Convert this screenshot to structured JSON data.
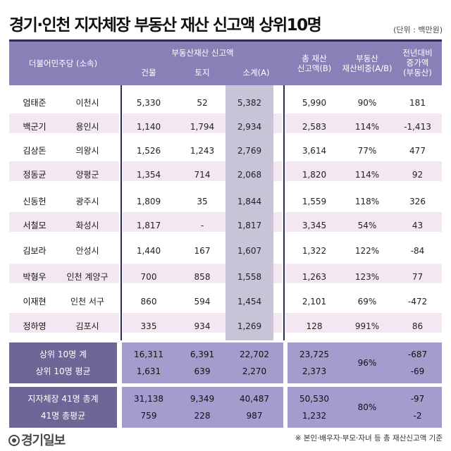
{
  "title": "경기·인천 지자체장 부동산 재산 신고액 상위10명",
  "unit": "(단위 : 백만원)",
  "header": {
    "party": "더불어민주당 (소속)",
    "realestate_group": "부동산재산 신고액",
    "building": "건물",
    "land": "토지",
    "subtotal": "소계(A)",
    "total_assets_l1": "총 재산",
    "total_assets_l2": "신고액(B)",
    "ratio_l1": "부동산",
    "ratio_l2": "재산비중(A/B)",
    "yoy_l1": "전년대비",
    "yoy_l2": "증가액",
    "yoy_l3": "(부동산)"
  },
  "rows": [
    {
      "name": "엄태준",
      "region": "이천시",
      "building": "5,330",
      "land": "52",
      "subtotal": "5,382",
      "total": "5,990",
      "ratio": "90%",
      "yoy": "181"
    },
    {
      "name": "백군기",
      "region": "용인시",
      "building": "1,140",
      "land": "1,794",
      "subtotal": "2,934",
      "total": "2,583",
      "ratio": "114%",
      "yoy": "-1,413"
    },
    {
      "name": "김상돈",
      "region": "의왕시",
      "building": "1,526",
      "land": "1,243",
      "subtotal": "2,769",
      "total": "3,614",
      "ratio": "77%",
      "yoy": "477"
    },
    {
      "name": "정동균",
      "region": "양평군",
      "building": "1,354",
      "land": "714",
      "subtotal": "2,068",
      "total": "1,820",
      "ratio": "114%",
      "yoy": "92"
    },
    {
      "name": "신동헌",
      "region": "광주시",
      "building": "1,809",
      "land": "35",
      "subtotal": "1,844",
      "total": "1,559",
      "ratio": "118%",
      "yoy": "326"
    },
    {
      "name": "서철모",
      "region": "화성시",
      "building": "1,817",
      "land": "-",
      "subtotal": "1,817",
      "total": "3,345",
      "ratio": "54%",
      "yoy": "43"
    },
    {
      "name": "김보라",
      "region": "안성시",
      "building": "1,440",
      "land": "167",
      "subtotal": "1,607",
      "total": "1,322",
      "ratio": "122%",
      "yoy": "-84"
    },
    {
      "name": "박형우",
      "region": "인천 계양구",
      "building": "700",
      "land": "858",
      "subtotal": "1,558",
      "total": "1,263",
      "ratio": "123%",
      "yoy": "77"
    },
    {
      "name": "이재현",
      "region": "인천 서구",
      "building": "860",
      "land": "594",
      "subtotal": "1,454",
      "total": "2,101",
      "ratio": "69%",
      "yoy": "-472"
    },
    {
      "name": "정하영",
      "region": "김포시",
      "building": "335",
      "land": "934",
      "subtotal": "1,269",
      "total": "128",
      "ratio": "991%",
      "yoy": "86"
    }
  ],
  "summary1": {
    "row1": {
      "label": "상위 10명 계",
      "building": "16,311",
      "land": "6,391",
      "subtotal": "22,702",
      "total": "23,725",
      "yoy": "-687"
    },
    "row2": {
      "label": "상위 10명 평균",
      "building": "1,631",
      "land": "639",
      "subtotal": "2,270",
      "total": "2,373",
      "yoy": "-69"
    },
    "ratio": "96%"
  },
  "summary2": {
    "row1": {
      "label": "지자체장 41명 총계",
      "building": "31,138",
      "land": "9,349",
      "subtotal": "40,487",
      "total": "50,530",
      "yoy": "-97"
    },
    "row2": {
      "label": "41명 총평균",
      "building": "759",
      "land": "228",
      "subtotal": "987",
      "total": "1,232",
      "yoy": "-2"
    },
    "ratio": "80%"
  },
  "footnote": "※ 본인·배우자·부모·자녀 등 총 재산신고액 기준",
  "logo": "경기일보",
  "colors": {
    "header": "#8a80b8",
    "dark": "#2e2a5a",
    "pink_row": "#f3e8f1",
    "subtotal_col": "#c9c3d8",
    "summary_left": "#6f6596",
    "summary_fill": "#a49ccd"
  }
}
